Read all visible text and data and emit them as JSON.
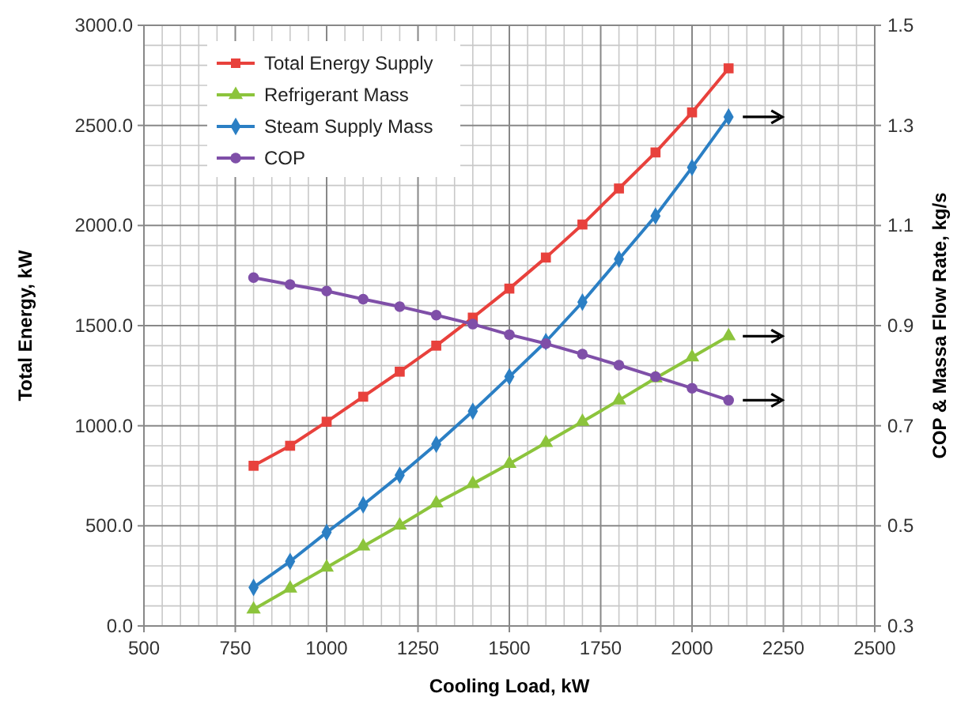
{
  "chart_data": {
    "type": "line",
    "xlabel": "Cooling Load, kW",
    "ylabel": "Total Energy, kW",
    "y2label": "COP & Massa Flow Rate, kg/s",
    "x": [
      800,
      900,
      1000,
      1100,
      1200,
      1300,
      1400,
      1500,
      1600,
      1700,
      1800,
      1900,
      2000,
      2100
    ],
    "series": [
      {
        "name": "Total Energy Supply",
        "color": "#e8413c",
        "marker": "square",
        "values": [
          800,
          900,
          1020,
          1145,
          1270,
          1400,
          1540,
          1685,
          1840,
          2005,
          2185,
          2365,
          2565,
          2785
        ]
      },
      {
        "name": "Refrigerant Mass",
        "color": "#8cc43c",
        "marker": "triangle",
        "axis": "y2",
        "values": [
          0.333,
          0.375,
          0.417,
          0.459,
          0.501,
          0.545,
          0.584,
          0.624,
          0.666,
          0.708,
          0.751,
          0.795,
          0.837,
          0.879
        ]
      },
      {
        "name": "Steam Supply Mass",
        "color": "#2b7fc4",
        "marker": "diamond",
        "axis": "y2",
        "values": [
          0.377,
          0.429,
          0.487,
          0.542,
          0.601,
          0.663,
          0.729,
          0.798,
          0.868,
          0.947,
          1.033,
          1.119,
          1.216,
          1.317
        ]
      },
      {
        "name": "COP",
        "color": "#7f4fa8",
        "marker": "circle",
        "axis": "y2",
        "values": [
          0.996,
          0.982,
          0.969,
          0.953,
          0.938,
          0.921,
          0.903,
          0.882,
          0.864,
          0.843,
          0.821,
          0.798,
          0.775,
          0.751
        ]
      }
    ],
    "xlim": [
      500,
      2500
    ],
    "xticks": [
      500,
      750,
      1000,
      1250,
      1500,
      1750,
      2000,
      2250,
      2500
    ],
    "ylim": [
      0,
      3000
    ],
    "yticks": [
      {
        "value": 0,
        "label": "0.0"
      },
      {
        "value": 500,
        "label": "500.0"
      },
      {
        "value": 1000,
        "label": "1000.0"
      },
      {
        "value": 1500,
        "label": "1500.0"
      },
      {
        "value": 2000,
        "label": "2000.0"
      },
      {
        "value": 2500,
        "label": "2500.0"
      },
      {
        "value": 3000,
        "label": "3000.0"
      }
    ],
    "y2lim": [
      0.3,
      1.5
    ],
    "y2ticks": [
      0.3,
      0.5,
      0.7,
      0.9,
      1.1,
      1.3,
      1.5
    ],
    "grid": true,
    "legend": "top left",
    "line_style": "solid"
  }
}
